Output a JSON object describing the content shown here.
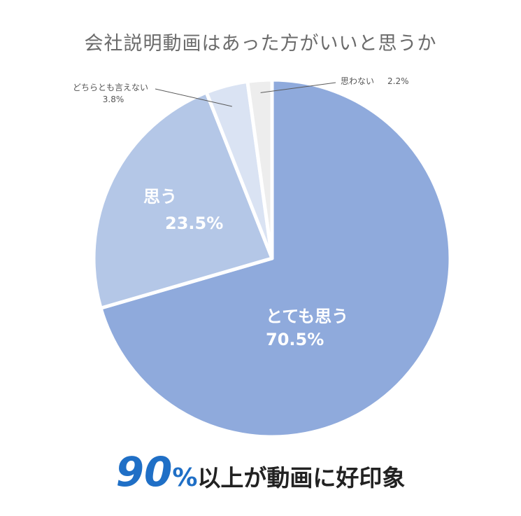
{
  "title": "会社説明動画はあった方がいいと思うか",
  "chart_data": {
    "type": "pie",
    "title": "会社説明動画はあった方がいいと思うか",
    "slices": [
      {
        "label": "とても思う",
        "value_text": "70.5%",
        "value": 70.5,
        "color": "#8faadc"
      },
      {
        "label": "思う",
        "value_text": "23.5%",
        "value": 23.5,
        "color": "#b4c7e7"
      },
      {
        "label": "どちらとも言えない",
        "value_text": "3.8%",
        "value": 3.8,
        "color": "#dae3f3"
      },
      {
        "label": "思わない",
        "value_text": "2.2%",
        "value": 2.2,
        "color": "#ededed"
      }
    ]
  },
  "footer": {
    "big": "90",
    "pct": "%",
    "rest": "以上が動画に好印象"
  }
}
